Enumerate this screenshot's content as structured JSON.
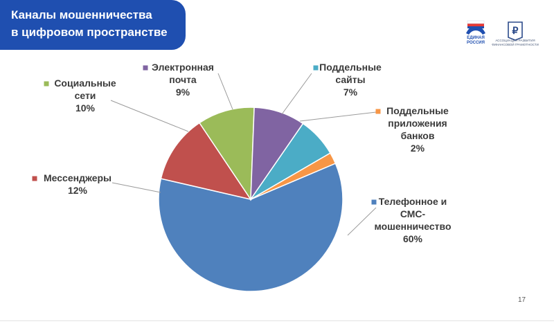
{
  "slide": {
    "title_line1": "Каналы мошенничества",
    "title_line2": "в цифровом пространстве",
    "page_number": "17",
    "logo_left_text": "ЕДИНАЯ РОССИЯ",
    "logo_right_text": "АССОЦИАЦИЯ РАЗВИТИЯ ФИНАНСОВОЙ ГРАМОТНОСТИ"
  },
  "chart_data": {
    "type": "pie",
    "title": "",
    "slices": [
      {
        "name": "Телефонное и СМС-мошенничество",
        "label_lines": [
          "Телефонное и",
          "СМС-",
          "мошенничество"
        ],
        "value": 60,
        "value_label": "60%",
        "color": "#4f81bd"
      },
      {
        "name": "Мессенджеры",
        "label_lines": [
          "Мессенджеры"
        ],
        "value": 12,
        "value_label": "12%",
        "color": "#c0504d"
      },
      {
        "name": "Социальные сети",
        "label_lines": [
          "Социальные",
          "сети"
        ],
        "value": 10,
        "value_label": "10%",
        "color": "#9bbb59"
      },
      {
        "name": "Электронная почта",
        "label_lines": [
          "Электронная",
          "почта"
        ],
        "value": 9,
        "value_label": "9%",
        "color": "#8064a2"
      },
      {
        "name": "Поддельные сайты",
        "label_lines": [
          "Поддельные",
          "сайты"
        ],
        "value": 7,
        "value_label": "7%",
        "color": "#4bacc6"
      },
      {
        "name": "Поддельные приложения банков",
        "label_lines": [
          "Поддельные",
          "приложения",
          "банков"
        ],
        "value": 2,
        "value_label": "2%",
        "color": "#f79646"
      }
    ]
  }
}
